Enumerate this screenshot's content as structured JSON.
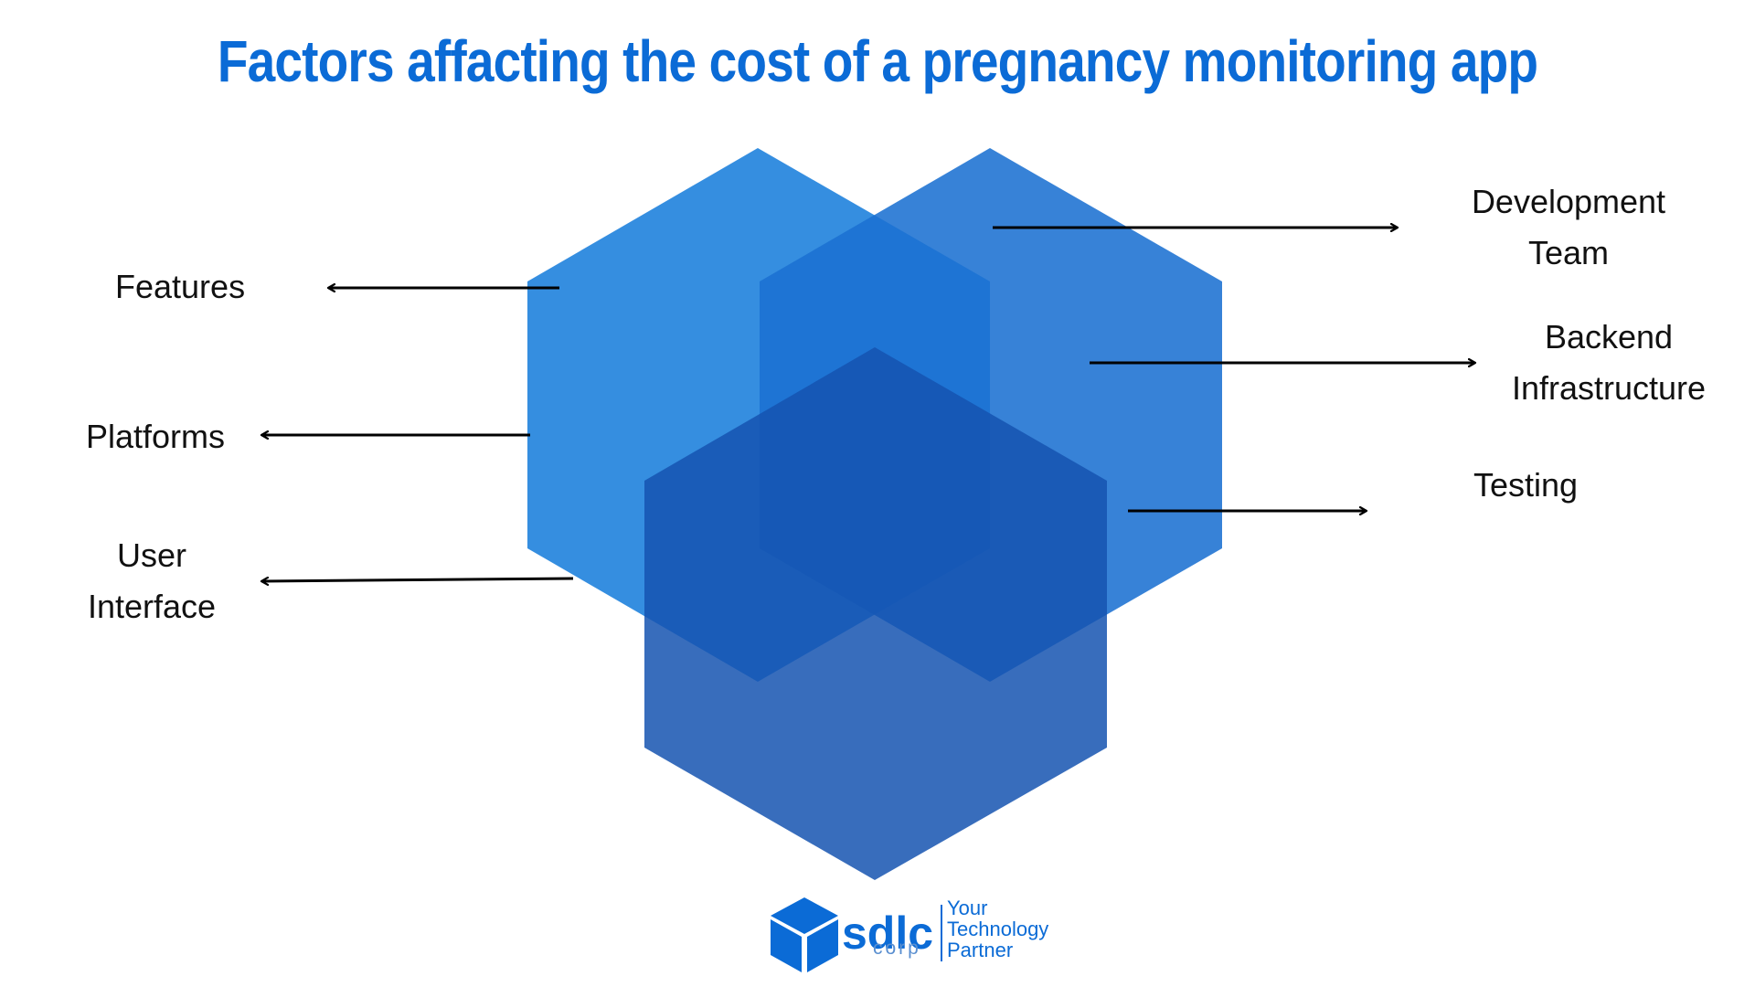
{
  "title": "Factors affacting the cost of a pregnancy monitoring app",
  "factors": {
    "features": "Features",
    "platforms": "Platforms",
    "user_interface_line1": "User",
    "user_interface_line2": "Interface",
    "development_team_line1": "Development",
    "development_team_line2": "Team",
    "backend_line1": "Backend",
    "backend_line2": "Infrastructure",
    "testing": "Testing"
  },
  "logo": {
    "mark": "sdlc",
    "sub": "corp",
    "tagline_line1": "Your",
    "tagline_line2": "Technology",
    "tagline_line3": "Partner",
    "icon": "cube-icon"
  },
  "colors": {
    "title": "#0b6bd6",
    "hex_left": "#1f82dd",
    "hex_right": "#1b71d1",
    "hex_bottom": "#1553b0",
    "arrow": "#000000"
  }
}
